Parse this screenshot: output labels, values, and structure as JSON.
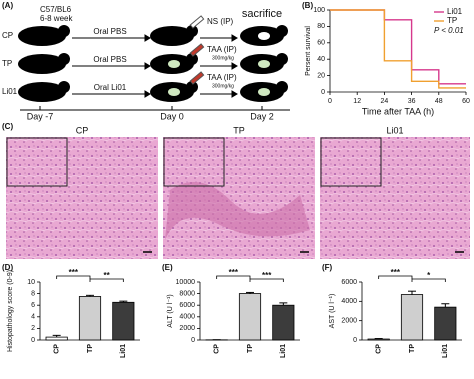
{
  "panels": [
    "(A)",
    "(B)",
    "(C)",
    "(D)",
    "(E)",
    "(F)"
  ],
  "diagram": {
    "strain": "C57/BL6",
    "age": "6-8 week",
    "groups": [
      "CP",
      "TP",
      "Li01"
    ],
    "treatments": [
      "Oral PBS",
      "Oral PBS",
      "Oral Li01"
    ],
    "injections": [
      {
        "name": "NS (IP)"
      },
      {
        "name": "TAA (IP)",
        "dose": "300mg/kg"
      },
      {
        "name": "TAA (IP)",
        "dose": "300mg/kg"
      }
    ],
    "endpoint": "sacrifice",
    "days": [
      "Day -7",
      "Day 0",
      "Day 2"
    ]
  },
  "images": {
    "labels": [
      "CP",
      "TP",
      "Li01"
    ]
  },
  "chart_data": [
    {
      "type": "line",
      "y_label": "Persent survival",
      "x_label": "Time after TAA (h)",
      "x": [
        0,
        24,
        24,
        36,
        36,
        48,
        48,
        60
      ],
      "series": [
        {
          "name": "Li01",
          "color": "#d6388c",
          "values": [
            100,
            100,
            88,
            88,
            27,
            27,
            10,
            10
          ]
        },
        {
          "name": "TP",
          "color": "#f0a030",
          "values": [
            100,
            100,
            38,
            38,
            13,
            13,
            5,
            5
          ]
        }
      ],
      "xlim": [
        0,
        60
      ],
      "xticks": [
        0,
        12,
        24,
        36,
        48,
        60
      ],
      "ylim": [
        0,
        100
      ],
      "yticks": [
        0,
        20,
        40,
        60,
        80,
        100
      ],
      "legend": "upper right",
      "annotation": "P < 0.01"
    },
    {
      "type": "bar",
      "y_label": "Histopathology score (0-9)",
      "categories": [
        "CP",
        "TP",
        "Li01"
      ],
      "values": [
        0.5,
        7.5,
        6.5
      ],
      "errors": [
        0.3,
        0.2,
        0.2
      ],
      "colors": [
        "#ffffff",
        "#cfcfcf",
        "#3c3c3c"
      ],
      "ylim": [
        0,
        10
      ],
      "yticks": [
        0,
        2,
        4,
        6,
        8,
        10
      ],
      "significance": [
        "***",
        "**"
      ]
    },
    {
      "type": "bar",
      "y_label": "ALT (U l⁻¹)",
      "categories": [
        "CP",
        "TP",
        "Li01"
      ],
      "values": [
        30,
        8000,
        6000
      ],
      "errors": [
        20,
        200,
        400
      ],
      "colors": [
        "#ffffff",
        "#cfcfcf",
        "#3c3c3c"
      ],
      "ylim": [
        0,
        10000
      ],
      "yticks": [
        0,
        2000,
        4000,
        6000,
        8000,
        10000
      ],
      "significance": [
        "***",
        "***"
      ]
    },
    {
      "type": "bar",
      "y_label": "AST (U l⁻¹)",
      "categories": [
        "CP",
        "TP",
        "Li01"
      ],
      "values": [
        100,
        4700,
        3400
      ],
      "errors": [
        50,
        350,
        350
      ],
      "colors": [
        "#ffffff",
        "#cfcfcf",
        "#3c3c3c"
      ],
      "ylim": [
        0,
        6000
      ],
      "yticks": [
        0,
        2000,
        4000,
        6000
      ],
      "significance": [
        "***",
        "*"
      ]
    }
  ]
}
